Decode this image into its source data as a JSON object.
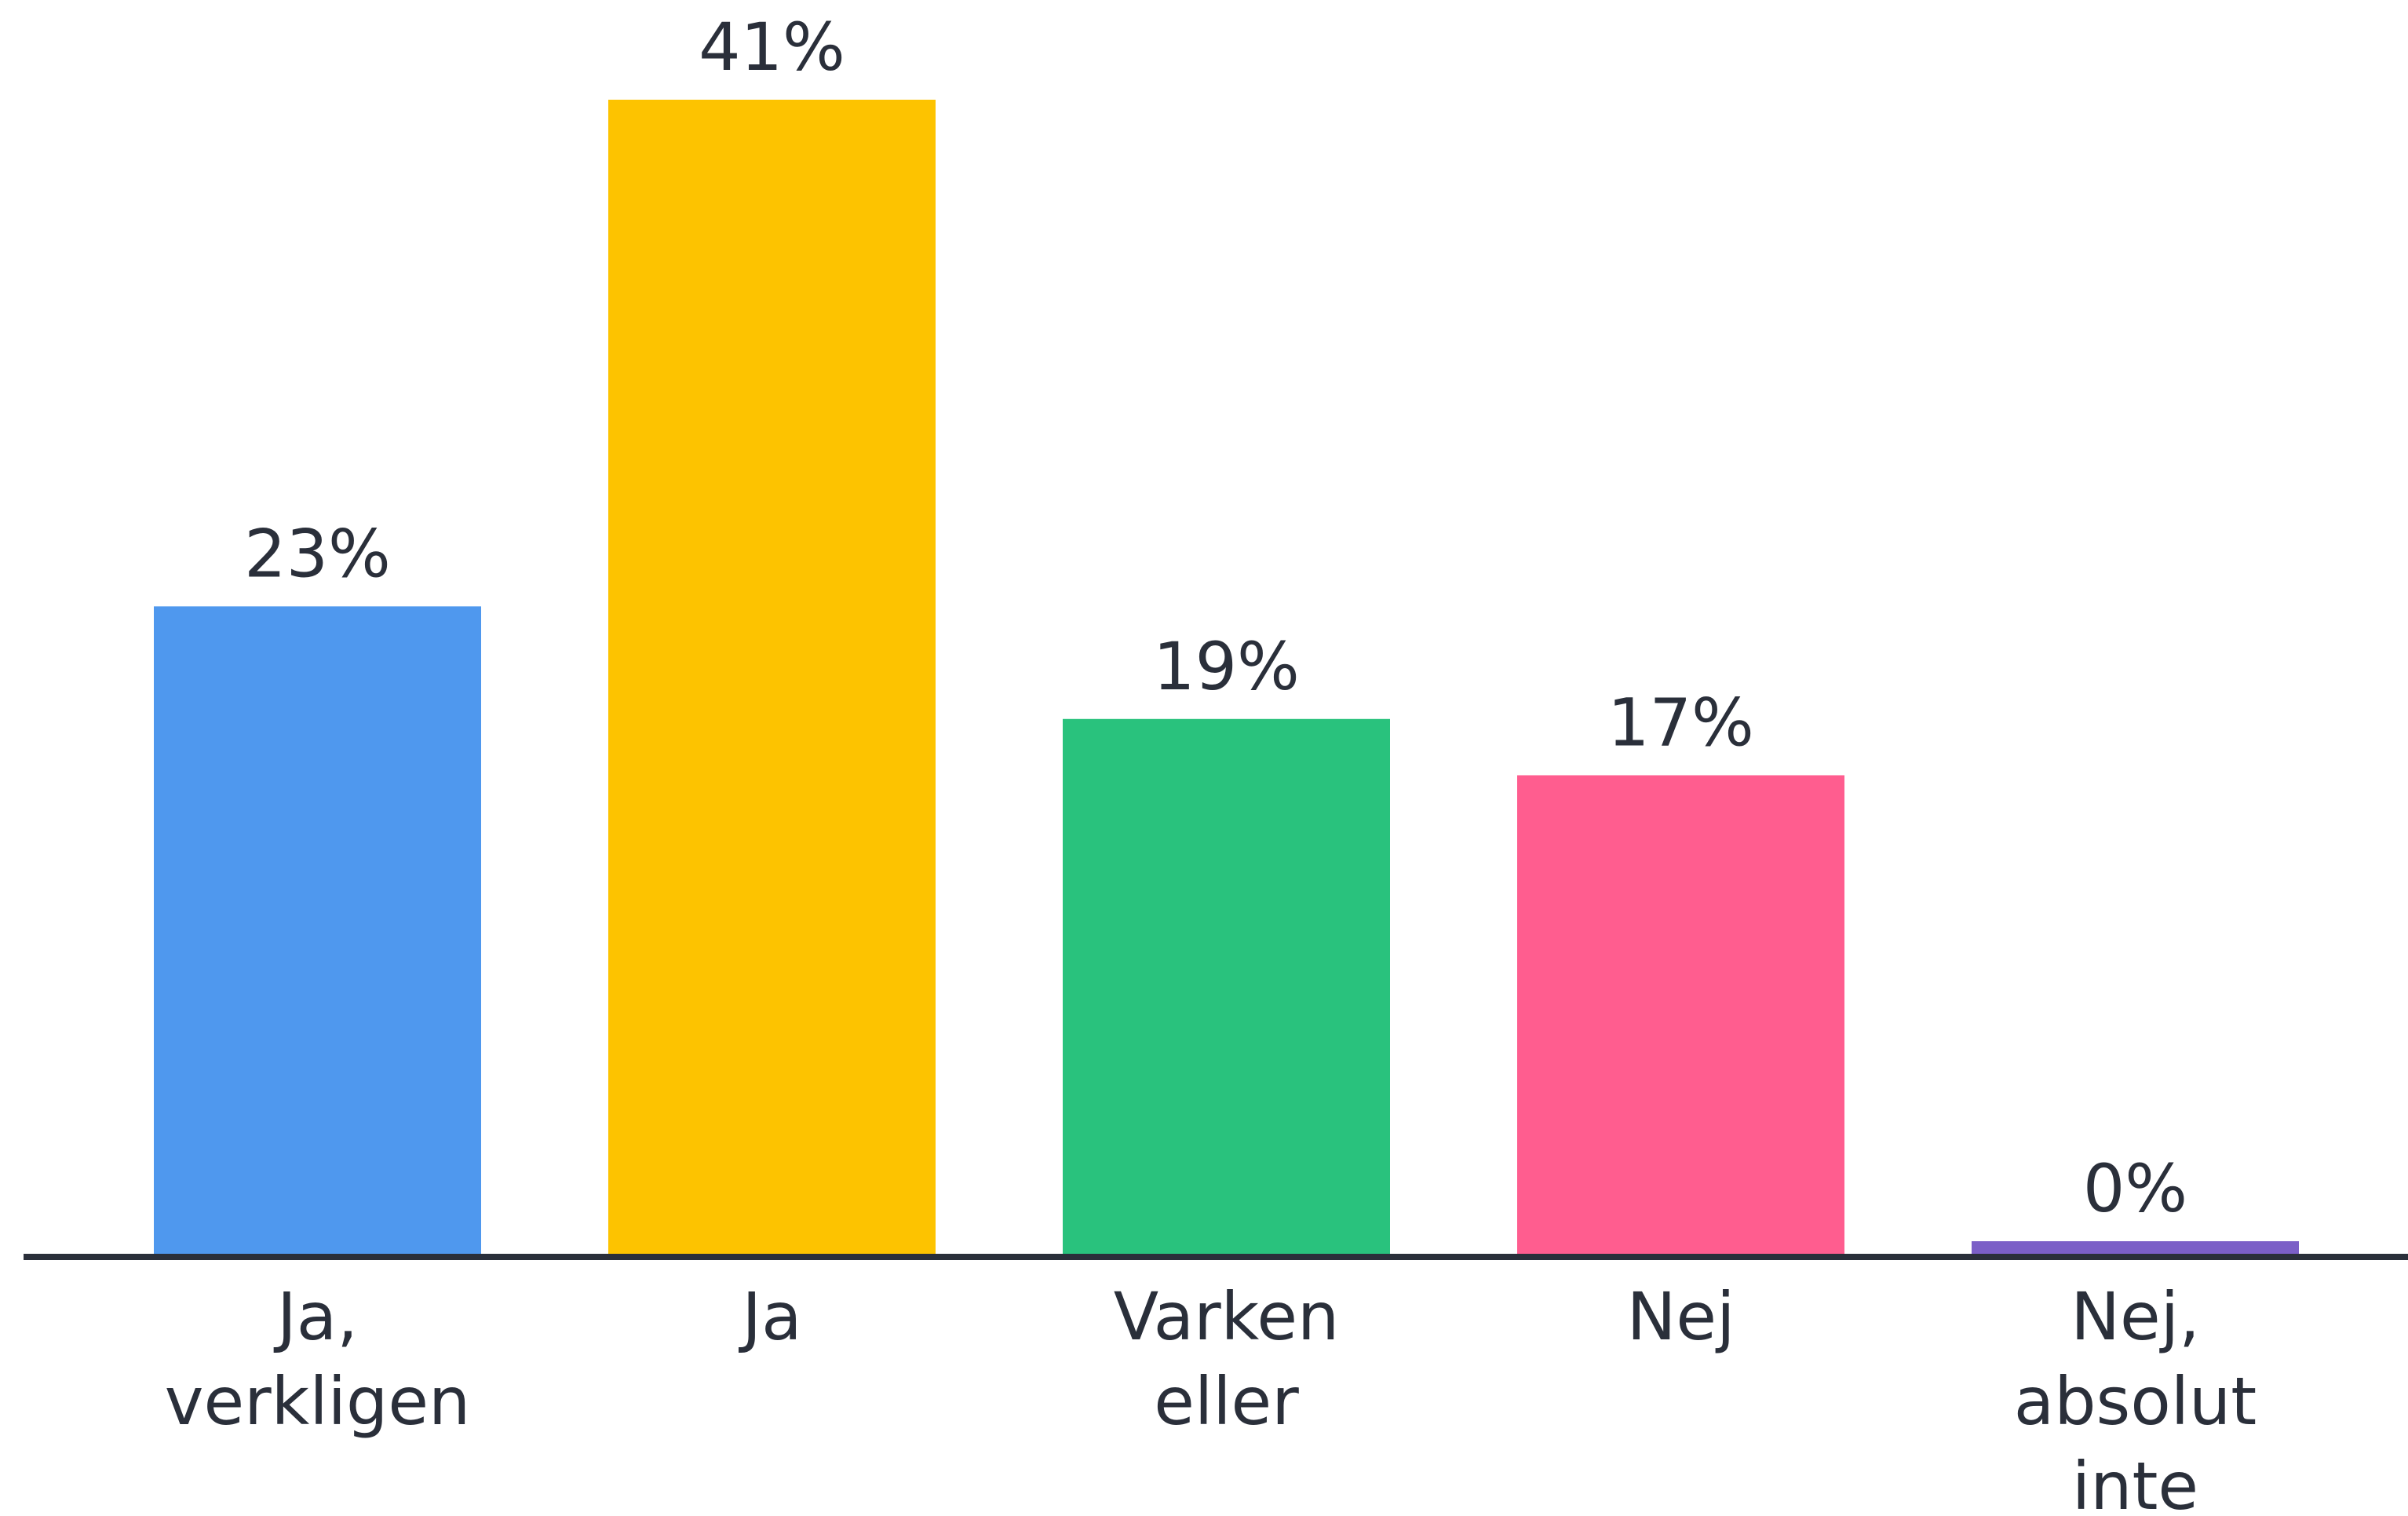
{
  "chart_data": {
    "type": "bar",
    "categories": [
      [
        "Ja,",
        "verkligen"
      ],
      [
        "Ja"
      ],
      [
        "Varken",
        "eller"
      ],
      [
        "Nej"
      ],
      [
        "Nej,",
        "absolut",
        "inte"
      ]
    ],
    "values": [
      23,
      41,
      19,
      17,
      0
    ],
    "value_labels": [
      "23%",
      "41%",
      "19%",
      "17%",
      "0%"
    ],
    "colors": [
      "#4f98ee",
      "#fdc300",
      "#29c27d",
      "#ff5d8f",
      "#7b5fc7"
    ]
  }
}
